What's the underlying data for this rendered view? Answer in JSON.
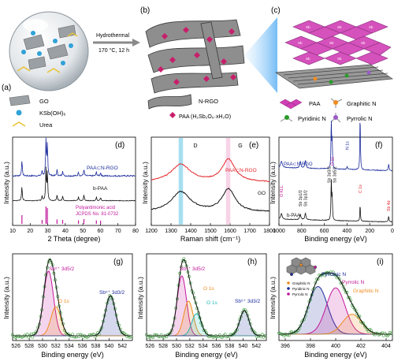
{
  "panels": {
    "a": {
      "label": "(a)",
      "arrow_line1": "Hydrothermal",
      "arrow_line2": "170 °C, 12 h",
      "legend": [
        "GO",
        "KSb(OH)₆",
        "Urea"
      ]
    },
    "b": {
      "label": "(b)",
      "legend": [
        "N-RGO",
        "PAA (H₂Sb₂O₆·xH₂O)"
      ]
    },
    "c": {
      "label": "(c)",
      "legend": [
        "PAA",
        "Graphitic N",
        "Pyridinic N",
        "Pyrrolic N"
      ]
    }
  },
  "colors": {
    "red": "#e3262a",
    "black": "#111111",
    "blue": "#1c2c9c",
    "magenta": "#c2189a",
    "orange": "#f08c1e",
    "teal": "#23b5b5",
    "green": "#2a9a2a"
  },
  "chart_data": [
    {
      "type": "line",
      "id": "d",
      "label": "(d)",
      "xlabel": "2 Theta (degree)",
      "ylabel": "Intensity (a.u.)",
      "xlim": [
        10,
        80
      ],
      "xticks": [
        10,
        20,
        30,
        40,
        50,
        60,
        70,
        80
      ],
      "series": [
        {
          "name": "PAA⊂N-RGO",
          "color": "#1c2c9c"
        },
        {
          "name": "b-PAA",
          "color": "#111111"
        },
        {
          "name": "Polyantimonic acid JCPDS No. 81-0732",
          "color": "#c2189a"
        }
      ],
      "reference_peaks": [
        15.3,
        26.8,
        29.0,
        29.8,
        35.3,
        38.5,
        47.5,
        50.6,
        57.7,
        60.1
      ]
    },
    {
      "type": "line",
      "id": "e",
      "label": "(e)",
      "xlabel": "Raman shift (cm⁻¹)",
      "ylabel": "Intensity (a.u.)",
      "xlim": [
        1200,
        1800
      ],
      "xticks": [
        1200,
        1300,
        1400,
        1500,
        1600,
        1700,
        1800
      ],
      "bands": [
        {
          "name": "D",
          "x": 1350
        },
        {
          "name": "G",
          "x": 1590
        }
      ],
      "series": [
        {
          "name": "PAA⊂N-RGO",
          "color": "#e3262a"
        },
        {
          "name": "GO",
          "color": "#111111"
        }
      ]
    },
    {
      "type": "line",
      "id": "f",
      "label": "(f)",
      "xlabel": "Binding energy (eV)",
      "ylabel": "Intensity (a.u.)",
      "xlim": [
        1000,
        0
      ],
      "xticks": [
        1000,
        800,
        600,
        400,
        200,
        0
      ],
      "series": [
        {
          "name": "PAA⊂N-RGO",
          "color": "#1c2c9c"
        },
        {
          "name": "b-PAA",
          "color": "#111111"
        }
      ],
      "annotations": [
        "O KLL",
        "Sb 3p1/2",
        "Sb 3p3/2",
        "Sb 3d3/2",
        "Sb 3d5/2",
        "O 1s",
        "N 1s",
        "C 1s",
        "Sb 4d"
      ]
    },
    {
      "type": "line",
      "id": "g",
      "label": "(g)",
      "xlabel": "Binding energy (eV)",
      "ylabel": "Intensity (a.u.)",
      "xlim": [
        525.5,
        543.5
      ],
      "xticks": [
        526,
        528,
        530,
        532,
        534,
        536,
        538,
        540,
        542
      ],
      "peaks": [
        {
          "name": "Sb⁵⁺ 3d5/2",
          "x": 530.9,
          "h": 1.0,
          "color": "#c2189a"
        },
        {
          "name": "O 1s",
          "x": 532.0,
          "h": 0.45,
          "color": "#f08c1e"
        },
        {
          "name": "Sb⁵⁺ 3d3/2",
          "x": 540.2,
          "h": 0.62,
          "color": "#1c2c9c"
        }
      ]
    },
    {
      "type": "line",
      "id": "h",
      "label": "(h)",
      "xlabel": "Binding energy (eV)",
      "ylabel": "Intensity (a.u.)",
      "xlim": [
        525.5,
        543.5
      ],
      "xticks": [
        526,
        528,
        530,
        532,
        534,
        536,
        538,
        540,
        542
      ],
      "peaks": [
        {
          "name": "Sb⁵⁺ 3d5/2",
          "x": 530.8,
          "h": 0.95,
          "color": "#c2189a"
        },
        {
          "name": "O 1s",
          "x": 531.8,
          "h": 0.55,
          "color": "#f08c1e"
        },
        {
          "name": "O 1s",
          "x": 533.0,
          "h": 0.35,
          "color": "#23b5b5"
        },
        {
          "name": "Sb⁵⁺ 3d3/2",
          "x": 540.2,
          "h": 0.4,
          "color": "#1c2c9c"
        }
      ]
    },
    {
      "type": "line",
      "id": "i",
      "label": "(i)",
      "xlabel": "Binding energy (eV)",
      "ylabel": "Intensity (a.u.)",
      "xlim": [
        395.5,
        404.5
      ],
      "xticks": [
        396,
        398,
        400,
        402,
        404
      ],
      "peaks": [
        {
          "name": "Pyridinic N",
          "x": 398.6,
          "h": 0.72,
          "color": "#1c2c9c"
        },
        {
          "name": "Pyrrolic N",
          "x": 400.0,
          "h": 0.7,
          "color": "#c2189a"
        },
        {
          "name": "Graphitic N",
          "x": 401.3,
          "h": 0.3,
          "color": "#f08c1e"
        }
      ],
      "inset_legend": [
        "Graphitic N",
        "Pyridinic N",
        "Pyrrolic N"
      ]
    }
  ]
}
